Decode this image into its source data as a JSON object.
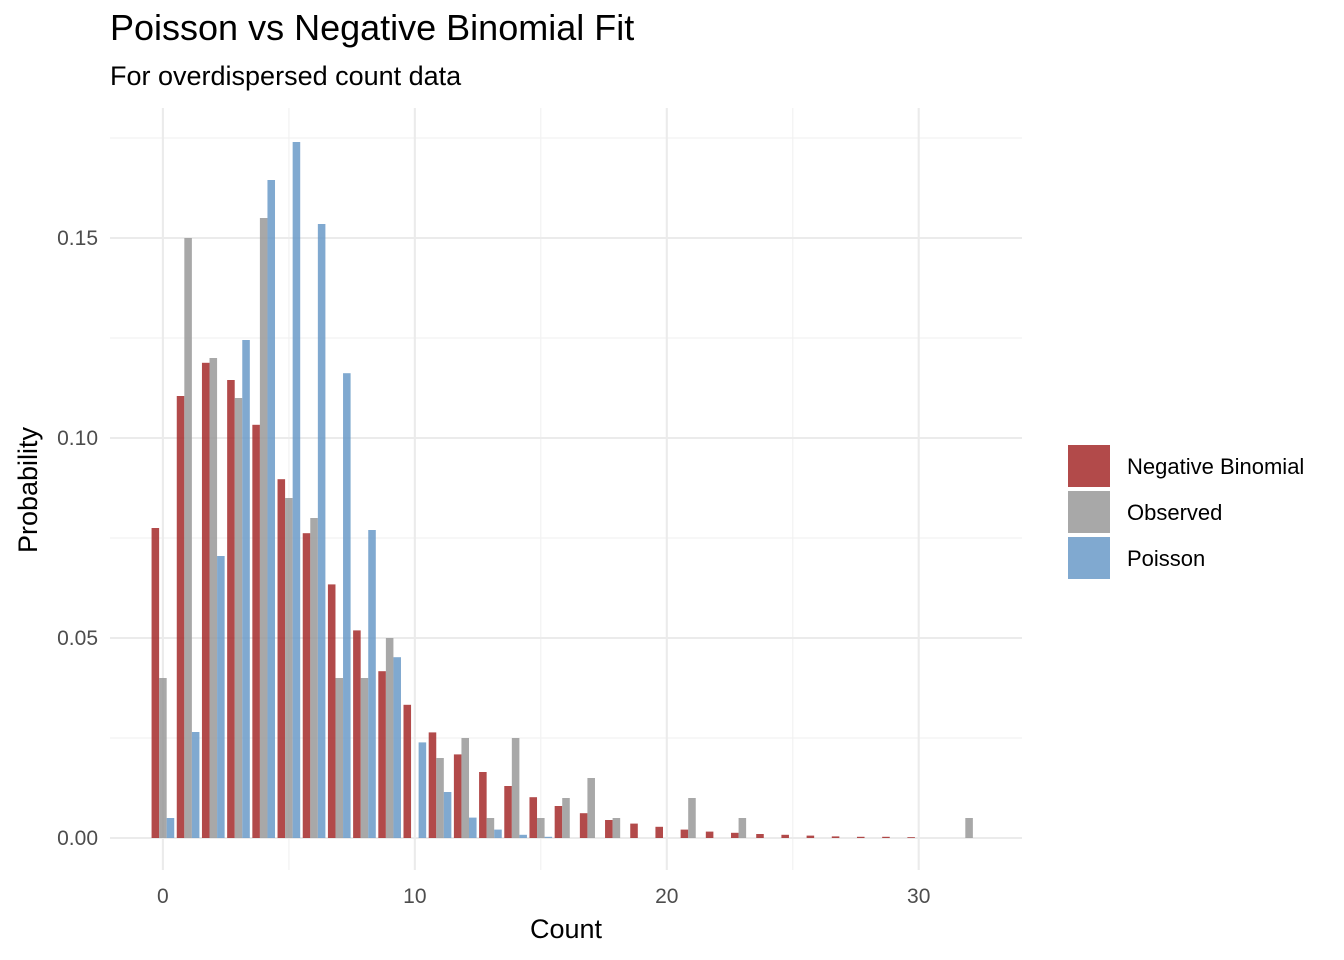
{
  "chart_data": {
    "type": "bar",
    "title": "Poisson vs Negative Binomial Fit",
    "subtitle": "For overdispersed count data",
    "xlabel": "Count",
    "ylabel": "Probability",
    "xlim": [
      -2.1,
      34.1
    ],
    "ylim": [
      -0.008,
      0.1825
    ],
    "x_ticks": [
      0,
      10,
      20,
      30
    ],
    "x_tick_labels": [
      "0",
      "10",
      "20",
      "30"
    ],
    "y_ticks": [
      0.0,
      0.05,
      0.1,
      0.15
    ],
    "y_tick_labels": [
      "0.00",
      "0.05",
      "0.10",
      "0.15"
    ],
    "grid": true,
    "legend_position": "right",
    "series": [
      {
        "name": "Negative Binomial",
        "color": "#A52A2A",
        "x": [
          0,
          1,
          2,
          3,
          4,
          5,
          6,
          7,
          8,
          9,
          10,
          11,
          12,
          13,
          14,
          15,
          16,
          17,
          18,
          19,
          20,
          21,
          22,
          23,
          24,
          25,
          26,
          27,
          28,
          29,
          30
        ],
        "values": [
          0.0775,
          0.1105,
          0.1188,
          0.1145,
          0.1033,
          0.0897,
          0.0762,
          0.0634,
          0.0519,
          0.0417,
          0.0333,
          0.0264,
          0.0209,
          0.0165,
          0.013,
          0.0102,
          0.008,
          0.0062,
          0.0045,
          0.0036,
          0.0028,
          0.0021,
          0.0016,
          0.0013,
          0.001,
          0.0008,
          0.0006,
          0.0004,
          0.0003,
          0.0003,
          0.0002
        ]
      },
      {
        "name": "Observed",
        "color": "#999999",
        "x": [
          0,
          1,
          2,
          3,
          4,
          5,
          6,
          7,
          8,
          9,
          11,
          12,
          13,
          14,
          15,
          16,
          17,
          18,
          21,
          23,
          32
        ],
        "values": [
          0.04,
          0.15,
          0.12,
          0.11,
          0.155,
          0.085,
          0.08,
          0.04,
          0.04,
          0.05,
          0.02,
          0.025,
          0.005,
          0.025,
          0.005,
          0.01,
          0.015,
          0.005,
          0.01,
          0.005,
          0.005
        ]
      },
      {
        "name": "Poisson",
        "color": "#6A9AC8",
        "x": [
          0,
          1,
          2,
          3,
          4,
          5,
          6,
          7,
          8,
          9,
          10,
          11,
          12,
          13,
          14,
          15
        ],
        "values": [
          0.005,
          0.0265,
          0.0705,
          0.1245,
          0.1645,
          0.174,
          0.1535,
          0.1162,
          0.077,
          0.0452,
          0.0239,
          0.0115,
          0.0051,
          0.0021,
          0.0008,
          0.0003
        ]
      }
    ]
  }
}
